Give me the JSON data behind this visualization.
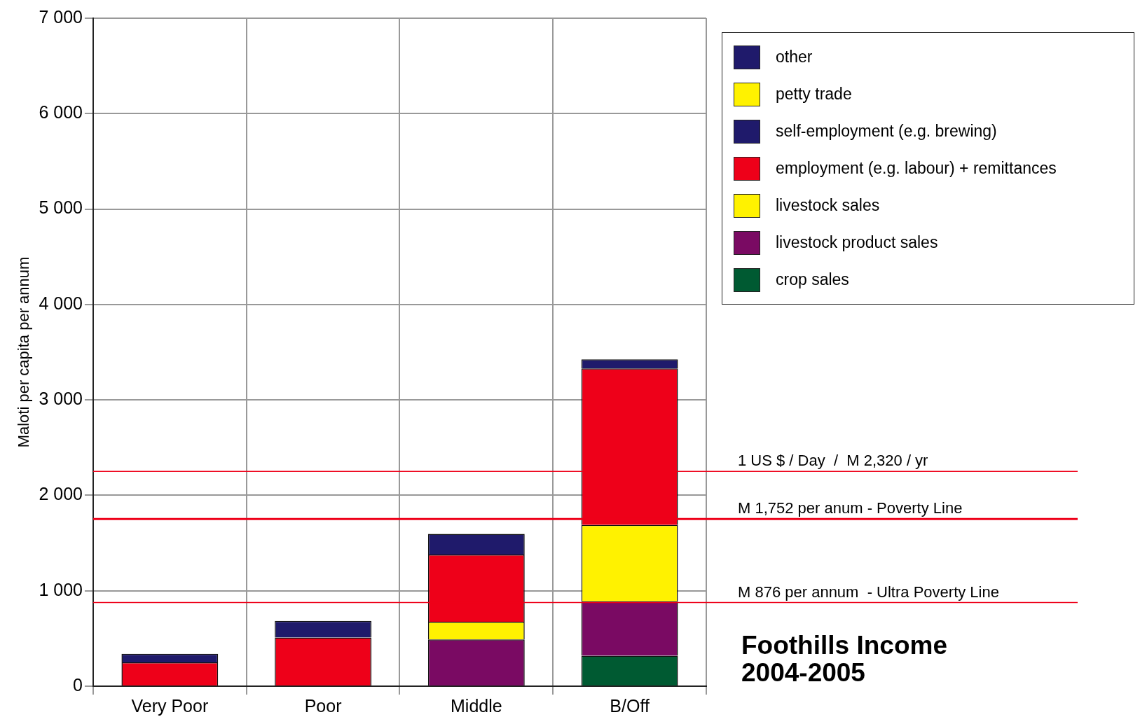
{
  "chart_data": {
    "type": "bar",
    "title": "Foothills Income 2004-2005",
    "ylabel": "Maloti per capita per annum",
    "categories": [
      "Very Poor",
      "Poor",
      "Middle",
      "B/Off"
    ],
    "stacked": true,
    "series": [
      {
        "name": "crop sales",
        "color": "#005a32",
        "values": [
          0,
          0,
          0,
          320
        ]
      },
      {
        "name": "livestock product sales",
        "color": "#7a0a63",
        "values": [
          0,
          0,
          490,
          570
        ]
      },
      {
        "name": "livestock sales",
        "color": "#fff200",
        "values": [
          0,
          0,
          185,
          800
        ]
      },
      {
        "name": "employment (e.g. labour) + remittances",
        "color": "#ee0019",
        "values": [
          250,
          510,
          705,
          1640
        ]
      },
      {
        "name": "self-employment (e.g. brewing)",
        "color": "#1f1a6b",
        "values": [
          90,
          175,
          215,
          95
        ]
      },
      {
        "name": "petty trade",
        "color": "#fff200",
        "values": [
          0,
          0,
          0,
          0
        ]
      },
      {
        "name": "other",
        "color": "#1f1a6b",
        "values": [
          0,
          0,
          0,
          0
        ]
      }
    ],
    "ylim": [
      0,
      7000
    ],
    "yticks": [
      {
        "value": 0,
        "label": "0"
      },
      {
        "value": 1000,
        "label": "1 000"
      },
      {
        "value": 2000,
        "label": "2 000"
      },
      {
        "value": 3000,
        "label": "3 000"
      },
      {
        "value": 4000,
        "label": "4 000"
      },
      {
        "value": 5000,
        "label": "5 000"
      },
      {
        "value": 6000,
        "label": "6 000"
      },
      {
        "value": 7000,
        "label": "7 000"
      }
    ],
    "grid": true,
    "legend": "top right",
    "ref_lines": [
      {
        "axis": "y",
        "value": 2250,
        "label": "1 US $ / Day  /  M 2,320 / yr",
        "color": "#ee0019"
      },
      {
        "axis": "y",
        "value": 1752,
        "label": "M 1,752 per anum - Poverty Line",
        "color": "#ee0019"
      },
      {
        "axis": "y",
        "value": 876,
        "label": "M 876 per annum  - Ultra Poverty Line",
        "color": "#ee0019"
      }
    ]
  }
}
